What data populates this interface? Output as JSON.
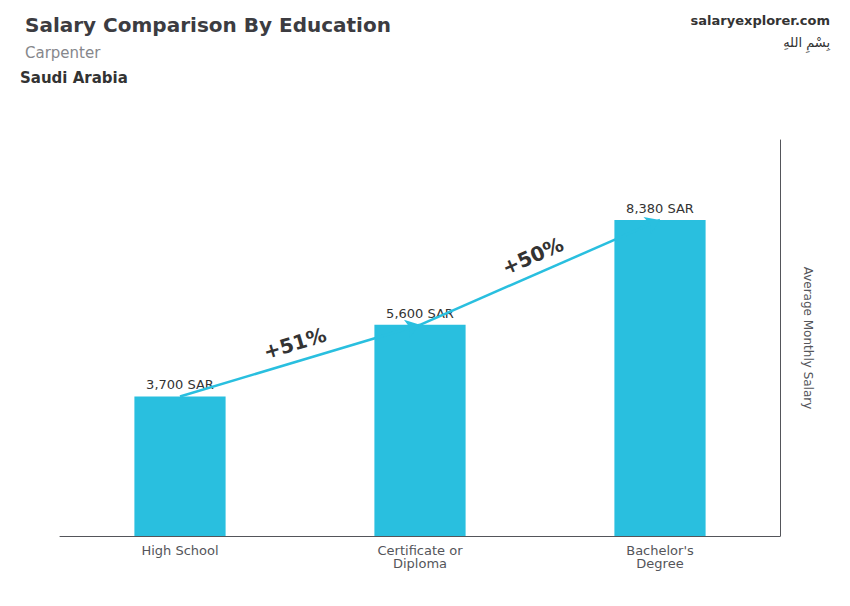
{
  "chart_data": {
    "type": "bar",
    "title": "Salary Comparison By Education",
    "subtitle": [
      "Carpenter",
      "Saudi Arabia"
    ],
    "source": "salaryexplorer.com",
    "flag_text": "بِسْمِ اللهِ",
    "ylabel": "Average Monthly Salary",
    "categories": [
      "High School",
      "Certificate or\nDiploma",
      "Bachelor's\nDegree"
    ],
    "values": [
      3700,
      5600,
      8380
    ],
    "value_labels": [
      "3,700 SAR",
      "5,600 SAR",
      "8,380 SAR"
    ],
    "data_labels": true,
    "annotations": [
      "+51%",
      "+50%"
    ],
    "color": "#29BFDF",
    "ylim": [
      0,
      10500
    ],
    "grid": false,
    "tick_labels": "x"
  }
}
